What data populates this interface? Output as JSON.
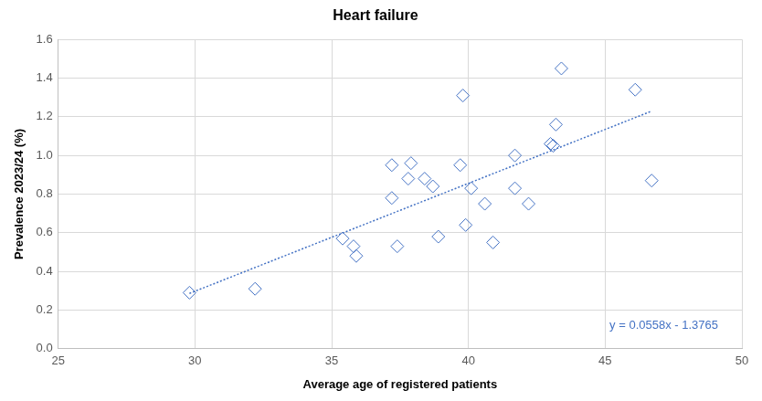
{
  "chart_data": {
    "type": "scatter",
    "title": "Heart failure",
    "x_label": "Average age of registered patients",
    "y_label": "Prevalence 2023/24 (%)",
    "x": [
      29.8,
      32.2,
      35.4,
      35.8,
      35.9,
      37.2,
      37.2,
      37.4,
      37.8,
      37.9,
      38.4,
      38.7,
      38.9,
      39.7,
      39.8,
      39.9,
      40.1,
      40.6,
      40.9,
      41.7,
      41.7,
      42.2,
      43.0,
      43.1,
      43.2,
      43.4,
      46.1,
      46.7
    ],
    "values": [
      0.29,
      0.31,
      0.57,
      0.53,
      0.48,
      0.78,
      0.95,
      0.53,
      0.88,
      0.96,
      0.88,
      0.84,
      0.58,
      0.95,
      1.31,
      0.64,
      0.83,
      0.75,
      0.55,
      0.83,
      1.0,
      0.75,
      1.06,
      1.05,
      1.16,
      1.45,
      1.34,
      0.87
    ],
    "color": "#4472c4",
    "marker": "diamond",
    "trendline": {
      "slope": 0.0558,
      "intercept": -1.3765,
      "label": "y = 0.0558x - 1.3765",
      "line_style": "dotted"
    },
    "xlim": [
      25,
      50
    ],
    "xticks": [
      25,
      30,
      35,
      40,
      45,
      50
    ],
    "ylim": [
      0,
      1.6
    ],
    "yticks": [
      {
        "value": 0,
        "label": "0.0"
      },
      0.2,
      0.4,
      0.6,
      0.8,
      {
        "value": 1,
        "label": "1.0"
      },
      1.2,
      1.4,
      1.6
    ],
    "grid": true
  }
}
